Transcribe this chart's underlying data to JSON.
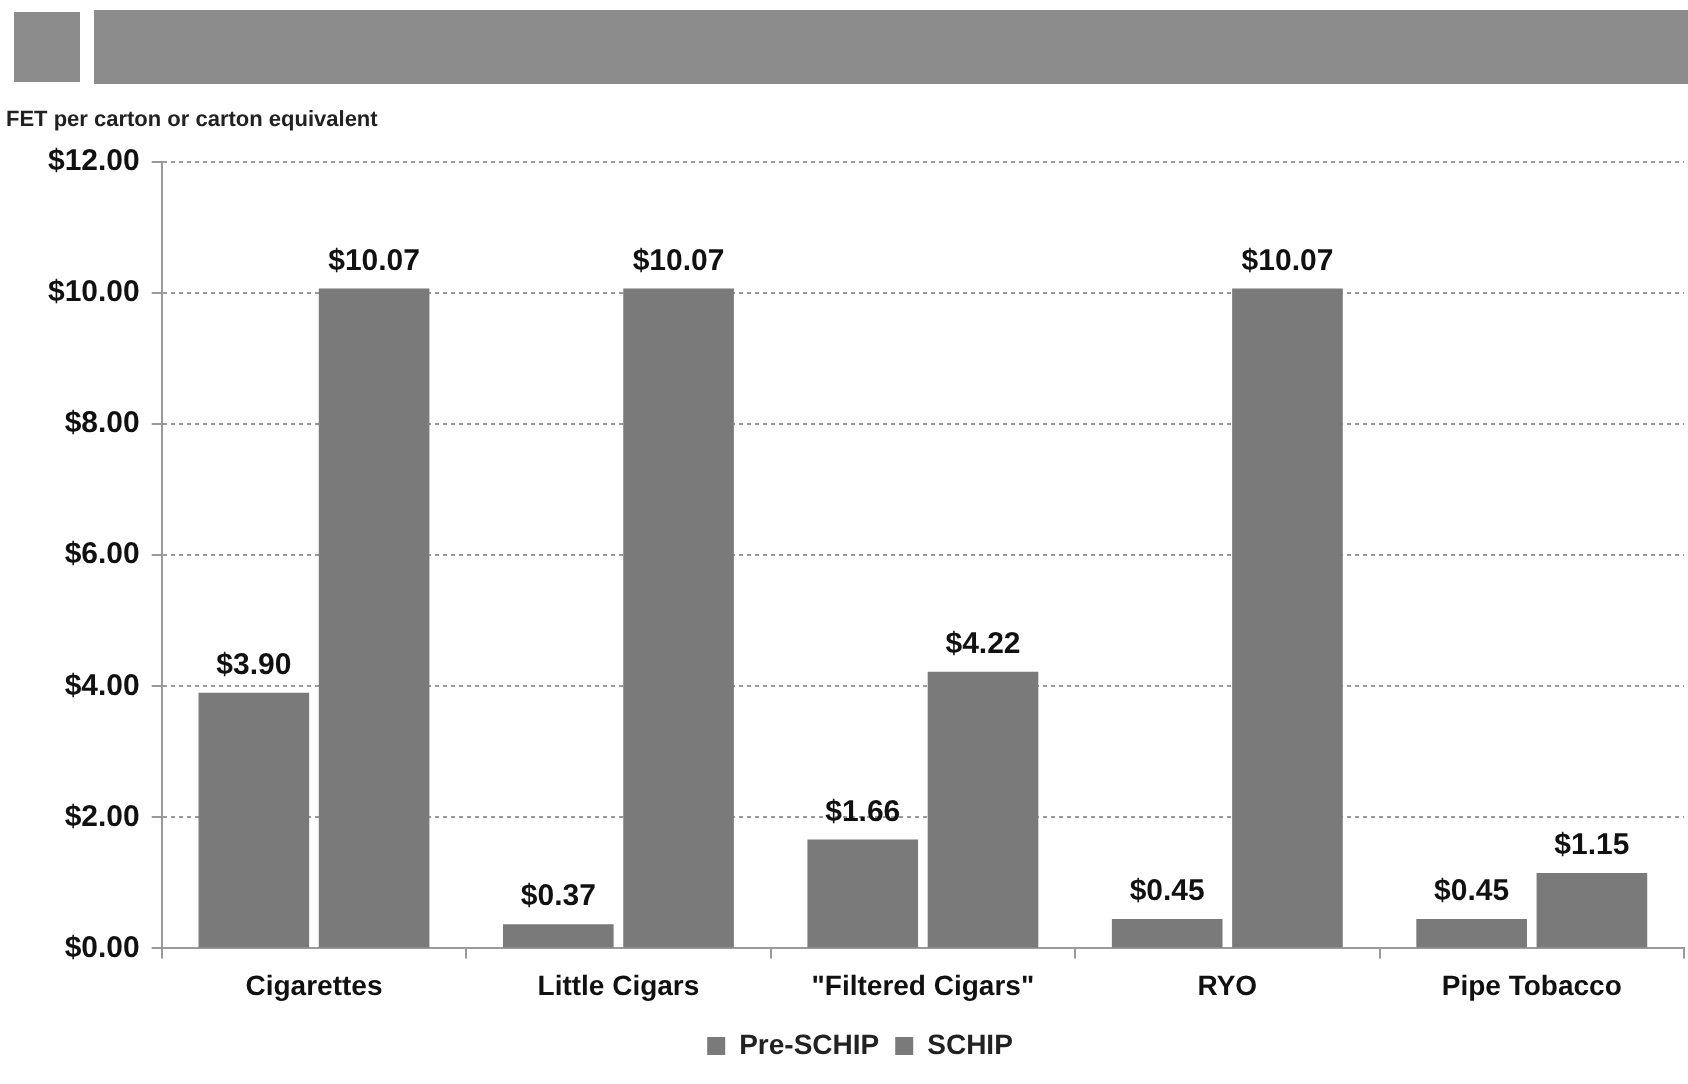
{
  "chart_data": {
    "type": "bar",
    "ylabel": "FET per carton or carton equivalent",
    "categories": [
      "Cigarettes",
      "Little Cigars",
      "\"Filtered Cigars\"",
      "RYO",
      "Pipe Tobacco"
    ],
    "series": [
      {
        "name": "Pre-SCHIP",
        "color": "#7a7a7a",
        "values": [
          3.9,
          0.37,
          1.66,
          0.45,
          0.45
        ],
        "value_labels": [
          "$3.90",
          "$0.37",
          "$1.66",
          "$0.45",
          "$0.45"
        ]
      },
      {
        "name": "SCHIP",
        "color": "#7a7a7a",
        "values": [
          10.07,
          10.07,
          4.22,
          10.07,
          1.15
        ],
        "value_labels": [
          "$10.07",
          "$10.07",
          "$4.22",
          "$10.07",
          "$1.15"
        ]
      }
    ],
    "ylim": [
      0,
      12
    ],
    "yticks": [
      {
        "value": 0,
        "label": "$0.00"
      },
      {
        "value": 2,
        "label": "$2.00"
      },
      {
        "value": 4,
        "label": "$4.00"
      },
      {
        "value": 6,
        "label": "$6.00"
      },
      {
        "value": 8,
        "label": "$8.00"
      },
      {
        "value": 10,
        "label": "$10.00"
      },
      {
        "value": 12,
        "label": "$12.00"
      }
    ],
    "grid": "y",
    "legend": "bottom"
  }
}
